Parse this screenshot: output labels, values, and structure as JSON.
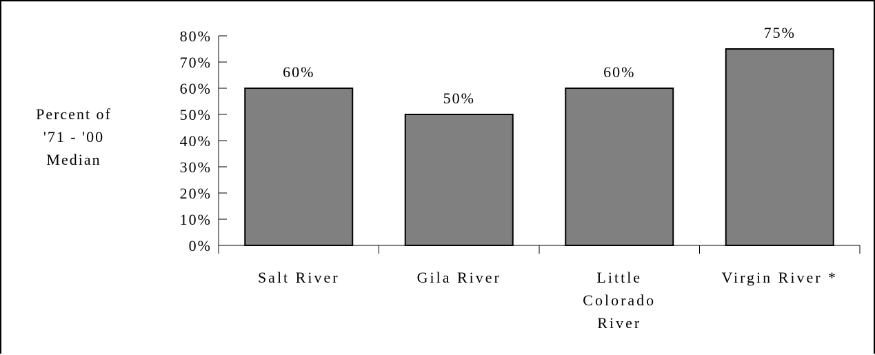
{
  "chart_data": {
    "type": "bar",
    "categories": [
      [
        "Salt River"
      ],
      [
        "Gila River"
      ],
      [
        "Little",
        "Colorado",
        "River"
      ],
      [
        "Virgin River *"
      ]
    ],
    "values": [
      60,
      50,
      60,
      75
    ],
    "data_labels": [
      "60%",
      "50%",
      "60%",
      "75%"
    ],
    "ylabel": [
      "Percent of",
      "'71 - '00",
      "Median"
    ],
    "yticks": [
      0,
      10,
      20,
      30,
      40,
      50,
      60,
      70,
      80
    ],
    "ytick_labels": [
      "0%",
      "10%",
      "20%",
      "30%",
      "40%",
      "50%",
      "60%",
      "70%",
      "80%"
    ],
    "ylim": [
      0,
      80
    ],
    "grid": false,
    "legend": "none",
    "colors": {
      "bar_fill": "#808080",
      "bar_stroke": "#000000",
      "axis": "#000000"
    }
  }
}
